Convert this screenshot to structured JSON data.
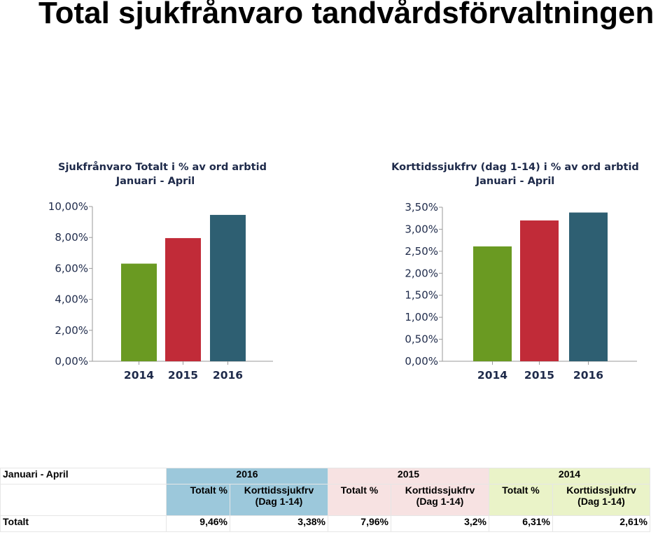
{
  "page": {
    "title": "Total sjukfrånvaro tandvårdsförvaltningen"
  },
  "chart_data": [
    {
      "type": "bar",
      "title": "Sjukfrånvaro Totalt i % av ord arbtid",
      "subtitle": "Januari - April",
      "categories": [
        "2014",
        "2015",
        "2016"
      ],
      "values": [
        6.31,
        7.96,
        9.46
      ],
      "colors": [
        "#6a9a22",
        "#c12b38",
        "#2e5f72"
      ],
      "ylim": [
        0,
        10
      ],
      "yticks": [
        "0,00%",
        "2,00%",
        "4,00%",
        "6,00%",
        "8,00%",
        "10,00%"
      ],
      "ytick_values": [
        0,
        2,
        4,
        6,
        8,
        10
      ],
      "grid": false,
      "xlabel": "",
      "ylabel": ""
    },
    {
      "type": "bar",
      "title": "Korttidssjukfrv (dag 1-14) i % av ord arbtid",
      "subtitle": "Januari - April",
      "categories": [
        "2014",
        "2015",
        "2016"
      ],
      "values": [
        2.61,
        3.2,
        3.38
      ],
      "colors": [
        "#6a9a22",
        "#c12b38",
        "#2e5f72"
      ],
      "ylim": [
        0,
        3.5
      ],
      "yticks": [
        "0,00%",
        "0,50%",
        "1,00%",
        "1,50%",
        "2,00%",
        "2,50%",
        "3,00%",
        "3,50%"
      ],
      "ytick_values": [
        0,
        0.5,
        1,
        1.5,
        2,
        2.5,
        3,
        3.5
      ],
      "grid": false,
      "xlabel": "",
      "ylabel": ""
    }
  ],
  "table": {
    "period_label": "Januari - April",
    "years": [
      "2016",
      "2015",
      "2014"
    ],
    "col_totalt": "Totalt %",
    "col_kort_line1": "Korttidssjukfrv",
    "col_kort_line2": "(Dag 1-14)",
    "row_label": "Totalt",
    "values": [
      "9,46%",
      "3,38%",
      "7,96%",
      "3,2%",
      "6,31%",
      "2,61%"
    ]
  }
}
